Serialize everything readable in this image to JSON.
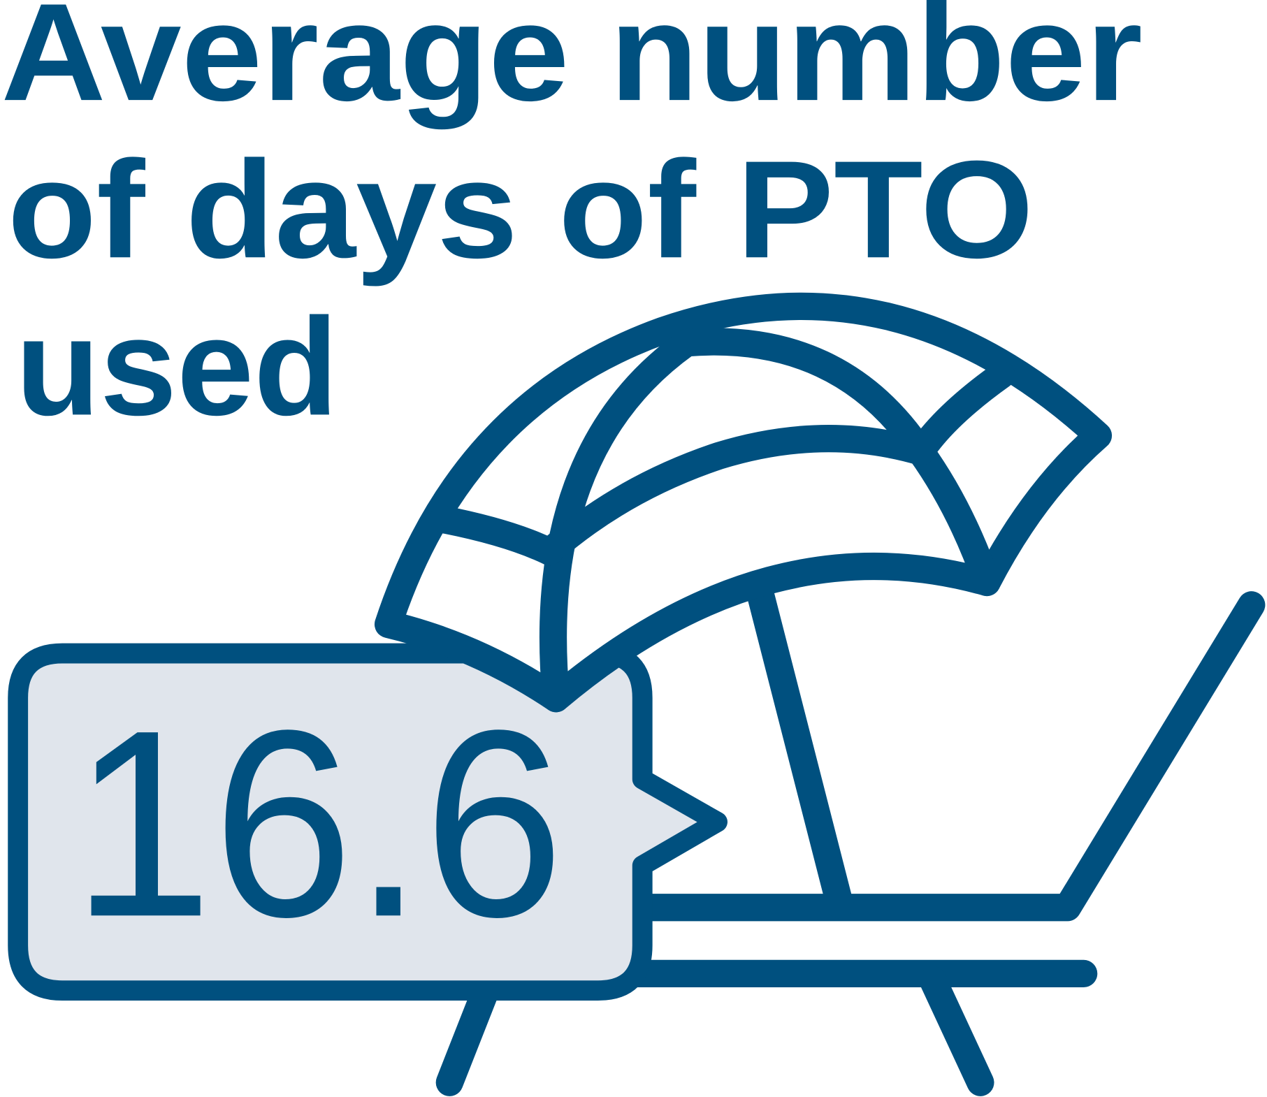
{
  "title": {
    "lines": [
      "Average number",
      "of days of PTO",
      "used"
    ]
  },
  "stat": {
    "value": "16.6"
  },
  "illustration": {
    "icon": "beach-umbrella-and-lounge-chair-icon"
  },
  "colors": {
    "primary": "#00507f",
    "callout_fill": "#e0e5ec",
    "background": "#ffffff"
  }
}
